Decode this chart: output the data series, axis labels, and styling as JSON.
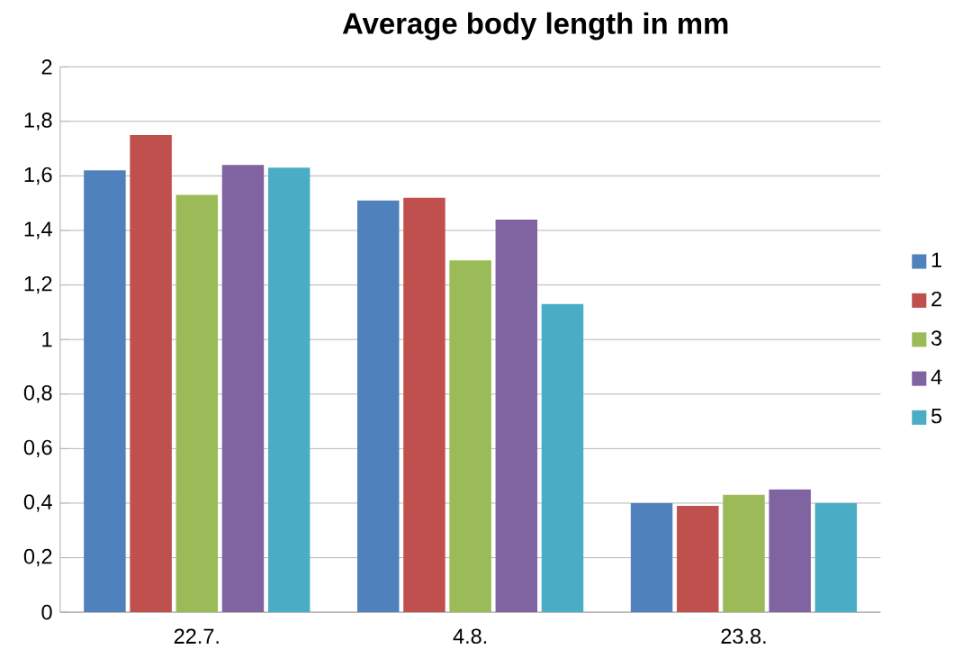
{
  "chart_data": {
    "type": "bar",
    "title": "Average body length in mm",
    "categories": [
      "22.7.",
      "4.8.",
      "23.8."
    ],
    "series": [
      {
        "name": "1",
        "color": "#4f81bd",
        "values": [
          1.62,
          1.51,
          0.4
        ]
      },
      {
        "name": "2",
        "color": "#c0504d",
        "values": [
          1.75,
          1.52,
          0.39
        ]
      },
      {
        "name": "3",
        "color": "#9bbb59",
        "values": [
          1.53,
          1.29,
          0.43
        ]
      },
      {
        "name": "4",
        "color": "#8064a2",
        "values": [
          1.64,
          1.44,
          0.45
        ]
      },
      {
        "name": "5",
        "color": "#4bacc6",
        "values": [
          1.63,
          1.13,
          0.4
        ]
      }
    ],
    "ylim": [
      0,
      2
    ],
    "yticks": [
      0,
      {
        "value": 0.2,
        "label": "0,2"
      },
      {
        "value": 0.4,
        "label": "0,4"
      },
      {
        "value": 0.6,
        "label": "0,6"
      },
      {
        "value": 0.8,
        "label": "0,8"
      },
      1,
      {
        "value": 1.2,
        "label": "1,2"
      },
      {
        "value": 1.4,
        "label": "1,4"
      },
      {
        "value": 1.6,
        "label": "1,6"
      },
      {
        "value": 1.8,
        "label": "1,8"
      },
      2
    ],
    "grid": "y",
    "legend": "right"
  }
}
